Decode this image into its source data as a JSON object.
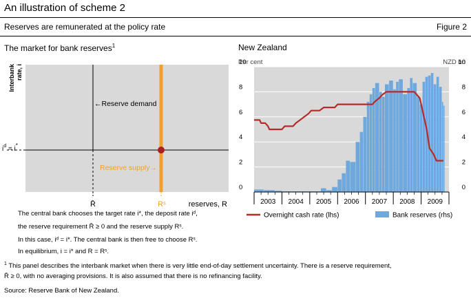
{
  "header": {
    "title": "An illustration of scheme 2",
    "subtitle": "Reserves are remunerated at the policy rate",
    "figure_label": "Figure 2"
  },
  "left_panel": {
    "title": "The market for bank reserves",
    "footnote_mark": "1",
    "y_axis_label_line1": "Interbank",
    "y_axis_label_line2": "rate, i",
    "rate_label": "i^d = i*",
    "reserve_demand_label": "←Reserve demand",
    "reserve_supply_label": "Reserve supply→",
    "x_tick_rbar": "R̄",
    "x_tick_rs": "Rˢ",
    "x_axis_label": "reserves, R",
    "description": [
      "The central bank chooses the target rate i*, the deposit rate iᵈ,",
      "the reserve requirement R̄ ≥ 0 and the reserve supply Rˢ.",
      "In this case, iᵈ = i*. The central bank is then free to choose Rˢ.",
      "In equilibrium, i = i* and R = Rˢ."
    ]
  },
  "footnotes": {
    "footnote_1": "This panel describes the interbank market when there is very little end-of-day settlement uncertainty. There is a reserve requirement,",
    "footnote_1_mark": "1",
    "footnote_2": "R̄ ≥ 0, with no averaging provisions. It is also assumed that there is no refinancing facility.",
    "source": "Source: Reserve Bank of New Zealand."
  },
  "colors": {
    "panel_bg": "#d9d9d9",
    "supply_line": "#f0a030",
    "equilibrium_point": "#a82020",
    "ocr_line": "#b52b27",
    "reserves_bars": "#6fa8dc"
  },
  "chart_data": [
    {
      "type": "diagram",
      "title": "The market for bank reserves",
      "elements": [
        "Reserve demand",
        "Reserve supply",
        "equilibrium"
      ],
      "xlabel": "reserves, R",
      "ylabel": "Interbank rate, i"
    },
    {
      "type": "bar+line",
      "title": "New Zealand",
      "left_unit": "Per cent",
      "right_unit": "NZD bn",
      "ylim_left": [
        0,
        10
      ],
      "ylim_right": [
        0,
        10
      ],
      "y_ticks_left": [
        0,
        2,
        4,
        6,
        8,
        10
      ],
      "y_ticks_right": [
        0,
        2,
        4,
        6,
        8,
        10
      ],
      "x_start": 2002.5,
      "x_end": 2009.5,
      "years": [
        "2003",
        "2004",
        "2005",
        "2006",
        "2007",
        "2008",
        "2009"
      ],
      "legend": [
        "Overnight cash rate (lhs)",
        "Bank reserves (rhs)"
      ],
      "series": [
        {
          "name": "Overnight cash rate (lhs)",
          "kind": "line",
          "points": [
            [
              2002.5,
              5.75
            ],
            [
              2002.7,
              5.75
            ],
            [
              2002.75,
              5.5
            ],
            [
              2002.9,
              5.5
            ],
            [
              2003.0,
              5.25
            ],
            [
              2003.05,
              5.0
            ],
            [
              2003.5,
              5.0
            ],
            [
              2003.6,
              5.25
            ],
            [
              2003.9,
              5.25
            ],
            [
              2004.0,
              5.5
            ],
            [
              2004.15,
              5.75
            ],
            [
              2004.3,
              6.0
            ],
            [
              2004.45,
              6.25
            ],
            [
              2004.55,
              6.5
            ],
            [
              2004.85,
              6.5
            ],
            [
              2005.0,
              6.75
            ],
            [
              2005.4,
              6.75
            ],
            [
              2005.5,
              7.0
            ],
            [
              2006.75,
              7.0
            ],
            [
              2006.85,
              7.25
            ],
            [
              2007.0,
              7.5
            ],
            [
              2007.1,
              7.75
            ],
            [
              2007.25,
              8.0
            ],
            [
              2008.25,
              8.0
            ],
            [
              2008.45,
              7.5
            ],
            [
              2008.55,
              6.5
            ],
            [
              2008.7,
              5.0
            ],
            [
              2008.8,
              3.5
            ],
            [
              2008.95,
              3.0
            ],
            [
              2009.05,
              2.5
            ],
            [
              2009.3,
              2.5
            ]
          ]
        },
        {
          "name": "Bank reserves (rhs)",
          "kind": "bar",
          "segments": [
            [
              2002.5,
              2002.85,
              0.2
            ],
            [
              2002.85,
              2003.25,
              0.15
            ],
            [
              2003.25,
              2003.5,
              0.1
            ],
            [
              2003.5,
              2004.9,
              0.05
            ],
            [
              2004.9,
              2005.1,
              0.3
            ],
            [
              2005.1,
              2005.3,
              0.15
            ],
            [
              2005.3,
              2005.5,
              0.4
            ],
            [
              2005.5,
              2005.65,
              1.0
            ],
            [
              2005.65,
              2005.8,
              1.5
            ],
            [
              2005.8,
              2005.95,
              2.5
            ],
            [
              2005.95,
              2006.15,
              2.4
            ],
            [
              2006.15,
              2006.3,
              4.0
            ],
            [
              2006.3,
              2006.42,
              4.8
            ],
            [
              2006.42,
              2006.55,
              6.0
            ],
            [
              2006.55,
              2006.65,
              7.2
            ],
            [
              2006.65,
              2006.75,
              7.8
            ],
            [
              2006.75,
              2006.85,
              8.3
            ],
            [
              2006.85,
              2007.0,
              8.7
            ],
            [
              2007.0,
              2007.1,
              8.0
            ],
            [
              2007.1,
              2007.2,
              7.6
            ],
            [
              2007.2,
              2007.35,
              8.6
            ],
            [
              2007.35,
              2007.5,
              8.9
            ],
            [
              2007.5,
              2007.6,
              8.2
            ],
            [
              2007.6,
              2007.7,
              8.8
            ],
            [
              2007.7,
              2007.85,
              9.0
            ],
            [
              2007.85,
              2008.0,
              7.8
            ],
            [
              2008.0,
              2008.1,
              8.3
            ],
            [
              2008.1,
              2008.2,
              9.1
            ],
            [
              2008.2,
              2008.35,
              8.7
            ],
            [
              2008.35,
              2008.45,
              7.6
            ],
            [
              2008.45,
              2008.55,
              7.0
            ],
            [
              2008.55,
              2008.65,
              8.8
            ],
            [
              2008.65,
              2008.75,
              9.2
            ],
            [
              2008.75,
              2008.85,
              9.3
            ],
            [
              2008.85,
              2008.95,
              9.5
            ],
            [
              2008.95,
              2009.05,
              8.6
            ],
            [
              2009.05,
              2009.15,
              9.2
            ],
            [
              2009.15,
              2009.25,
              8.4
            ],
            [
              2009.25,
              2009.3,
              7.2
            ],
            [
              2009.3,
              2009.35,
              6.9
            ]
          ]
        }
      ]
    }
  ]
}
